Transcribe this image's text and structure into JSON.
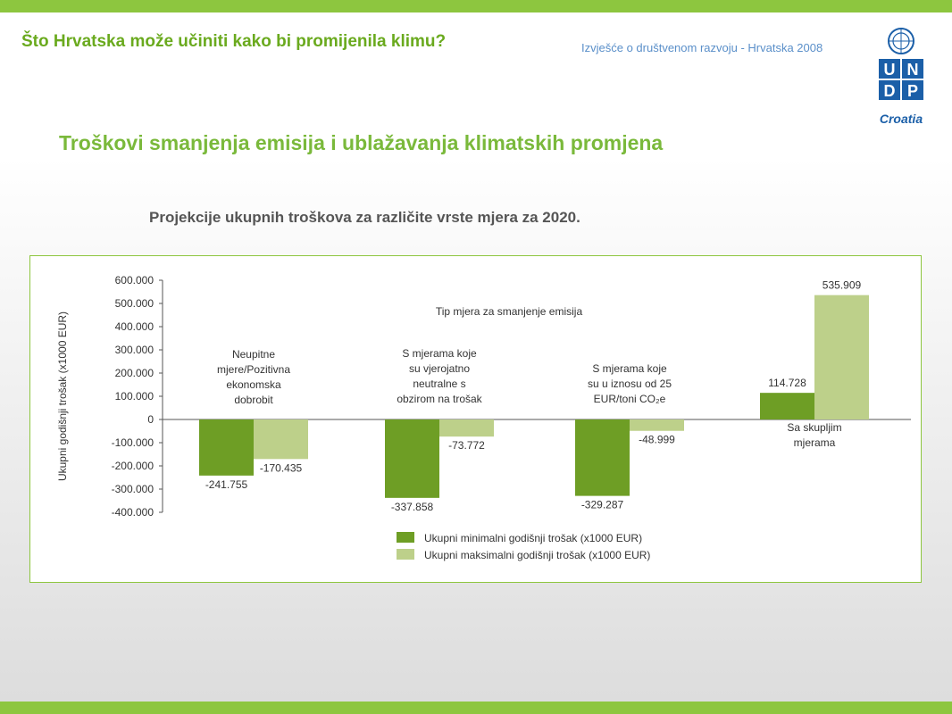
{
  "header": {
    "title": "Što Hrvatska može učiniti kako bi promijenila klimu?",
    "subtitle": "Izvješće o društvenom razvoju - Hrvatska 2008"
  },
  "logo": {
    "letters": [
      "U",
      "N",
      "D",
      "P"
    ],
    "caption": "Croatia",
    "color": "#1b5fa8"
  },
  "slide": {
    "title": "Troškovi smanjenja emisija i ublažavanja klimatskih promjena",
    "subtitle": "Projekcije ukupnih troškova za različite vrste mjera za 2020."
  },
  "colors": {
    "accent": "#8dc63f",
    "title_green": "#7ab93b",
    "series_min": "#6e9e25",
    "series_max": "#bdd08a"
  },
  "chart_data": {
    "type": "bar",
    "title": "Tip mjera za smanjenje emisija",
    "ylabel": "Ukupni godišnji trošak (x1000 EUR)",
    "ylim": [
      -400000,
      600000
    ],
    "yticks": [
      "600.000",
      "500.000",
      "400.000",
      "300.000",
      "200.000",
      "100.000",
      "0",
      "-100.000",
      "-200.000",
      "-300.000",
      "-400.000"
    ],
    "categories": [
      "Neupitne mjere/Pozitivna ekonomska dobrobit",
      "S mjerama koje su vjerojatno neutralne s obzirom na trošak",
      "S mjerama koje su u iznosu od 25 EUR/toni CO2e",
      "Sa skupljim mjerama"
    ],
    "category_label_lines": [
      [
        "Neupitne",
        "mjere/Pozitivna",
        "ekonomska",
        "dobrobit"
      ],
      [
        "S mjerama koje",
        "su vjerojatno",
        "neutralne s",
        "obzirom na trošak"
      ],
      [
        "S mjerama koje",
        "su u iznosu od 25",
        "EUR/toni CO₂e"
      ],
      [
        "Sa skupljim",
        "mjerama"
      ]
    ],
    "series": [
      {
        "name": "Ukupni minimalni godišnji trošak (x1000 EUR)",
        "values": [
          -241755,
          -337858,
          -329287,
          114728
        ],
        "labels": [
          "-241.755",
          "-337.858",
          "-329.287",
          "114.728"
        ]
      },
      {
        "name": "Ukupni maksimalni godišnji trošak (x1000 EUR)",
        "values": [
          -170435,
          -73772,
          -48999,
          535909
        ],
        "labels": [
          "-170.435",
          "-73.772",
          "-48.999",
          "535.909"
        ]
      }
    ],
    "legend": "bottom"
  }
}
